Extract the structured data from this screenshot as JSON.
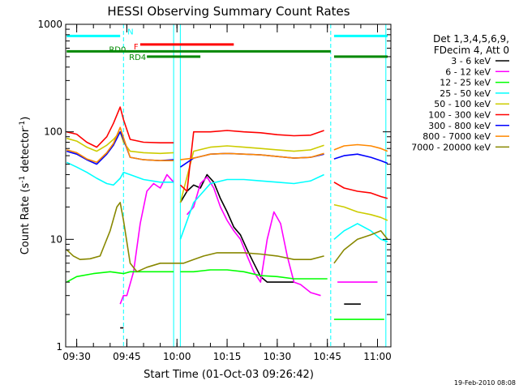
{
  "chart_data": {
    "type": "line",
    "title": "HESSI Observing Summary Count Rates",
    "xlabel": "Start Time (01-Oct-03 09:26:42)",
    "ylabel_main": "Count Rate (s",
    "ylabel_sup1": "-1",
    "ylabel_mid": " detector",
    "ylabel_sup2": "-1",
    "ylabel_end": ")",
    "y_scale": "log",
    "ylim": [
      1,
      1000
    ],
    "xlim": [
      "09:26:42",
      "11:04:00"
    ],
    "x_ticks": [
      "09:30",
      "09:45",
      "10:00",
      "10:15",
      "10:30",
      "10:45",
      "11:00"
    ],
    "y_ticks": [
      "1",
      "10",
      "100",
      "1000"
    ],
    "footer_date": "19-Feb-2010 08:08",
    "legend": {
      "header_lines": [
        "Det 1,3,4,5,6,9,",
        "FDecim 4, Att 0"
      ],
      "entries": [
        {
          "label": "3 - 6 keV",
          "color": "#000000"
        },
        {
          "label": "6 - 12 keV",
          "color": "#ff00ff"
        },
        {
          "label": "12 - 25 keV",
          "color": "#00ff00"
        },
        {
          "label": "25 - 50 keV",
          "color": "#00ffff"
        },
        {
          "label": "50 - 100 keV",
          "color": "#cccc00"
        },
        {
          "label": "100 - 300 keV",
          "color": "#ff0000"
        },
        {
          "label": "300 - 800 keV",
          "color": "#0000ff"
        },
        {
          "label": "800 - 7000 keV",
          "color": "#ff8800"
        },
        {
          "label": "7000 - 20000 keV",
          "color": "#888800"
        }
      ]
    },
    "flags": [
      {
        "label": "N",
        "color": "#00ffff",
        "level": 780,
        "segments": [
          [
            "09:27",
            "09:43"
          ],
          [
            "10:47",
            "11:03"
          ]
        ]
      },
      {
        "label": "F",
        "color": "#ff0000",
        "level": 650,
        "segments": [
          [
            "09:49",
            "10:17"
          ]
        ]
      },
      {
        "label": "RD0",
        "color": "#008800",
        "level": 560,
        "segments": [
          [
            "09:27",
            "10:46"
          ]
        ]
      },
      {
        "label": "",
        "color": "#008800",
        "level": 500,
        "segments": [
          [
            "10:47",
            "11:03"
          ]
        ]
      },
      {
        "label": "RD4",
        "color": "#008800",
        "level": 500,
        "segments": [
          [
            "09:51",
            "10:07"
          ]
        ]
      }
    ],
    "night_boundaries": [
      "09:26:42",
      "09:44:00",
      "10:46:00",
      "11:02:30"
    ],
    "saa_boundaries": [
      "09:59:00",
      "10:01:00"
    ],
    "series": [
      {
        "name": "3 - 6 keV",
        "color": "#000000",
        "x": [
          "09:43",
          "09:44",
          "09:59",
          "10:00",
          "10:01",
          "10:03",
          "10:05",
          "10:07",
          "10:09",
          "10:11",
          "10:13",
          "10:15",
          "10:17",
          "10:19",
          "10:21",
          "10:23",
          "10:25",
          "10:27",
          "10:29",
          "10:31",
          "10:33",
          "10:35",
          "10:46",
          "10:50",
          "10:55"
        ],
        "values": [
          1.5,
          1.5,
          null,
          null,
          22,
          28,
          32,
          30,
          40,
          34,
          24,
          18,
          13,
          11,
          8,
          6,
          4.5,
          4,
          4,
          4,
          4,
          4,
          null,
          2.5,
          2.5
        ]
      },
      {
        "name": "6 - 12 keV",
        "color": "#ff00ff",
        "x": [
          "09:43",
          "09:44",
          "09:45",
          "09:47",
          "09:49",
          "09:51",
          "09:53",
          "09:55",
          "09:57",
          "09:59",
          "10:00",
          "10:01",
          "10:03",
          "10:05",
          "10:07",
          "10:09",
          "10:11",
          "10:13",
          "10:15",
          "10:17",
          "10:19",
          "10:21",
          "10:23",
          "10:25",
          "10:27",
          "10:29",
          "10:31",
          "10:33",
          "10:35",
          "10:37",
          "10:40",
          "10:43",
          "10:46",
          "10:48",
          "10:52",
          "10:56",
          "11:00"
        ],
        "values": [
          2.5,
          3,
          3,
          5,
          14,
          28,
          33,
          30,
          40,
          34,
          null,
          null,
          17,
          20,
          33,
          38,
          30,
          20,
          15,
          12,
          10,
          7,
          5,
          4,
          10,
          18,
          14,
          7,
          4,
          3.8,
          3.2,
          3,
          null,
          4,
          4,
          4,
          4
        ]
      },
      {
        "name": "12 - 25 keV",
        "color": "#00ff00",
        "x": [
          "09:27",
          "09:30",
          "09:35",
          "09:40",
          "09:44",
          "09:46",
          "09:50",
          "09:55",
          "09:59",
          "10:00",
          "10:01",
          "10:05",
          "10:10",
          "10:15",
          "10:20",
          "10:25",
          "10:30",
          "10:35",
          "10:40",
          "10:45",
          "10:46",
          "10:47",
          "10:50",
          "10:55",
          "11:00",
          "11:02"
        ],
        "values": [
          4,
          4.5,
          4.8,
          5,
          4.8,
          5,
          5,
          5,
          5,
          null,
          5,
          5,
          5.2,
          5.2,
          5,
          4.6,
          4.5,
          4.3,
          4.3,
          4.3,
          null,
          1.8,
          1.8,
          1.8,
          1.8,
          1.8
        ]
      },
      {
        "name": "25 - 50 keV",
        "color": "#00ffff",
        "x": [
          "09:27",
          "09:30",
          "09:33",
          "09:36",
          "09:39",
          "09:41",
          "09:43",
          "09:44",
          "09:46",
          "09:50",
          "09:55",
          "09:59",
          "10:00",
          "10:01",
          "10:05",
          "10:10",
          "10:15",
          "10:20",
          "10:25",
          "10:30",
          "10:35",
          "10:40",
          "10:44",
          "10:46",
          "10:47",
          "10:50",
          "10:54",
          "10:58",
          "11:01",
          "11:03"
        ],
        "values": [
          52,
          47,
          42,
          37,
          33,
          32,
          37,
          42,
          40,
          36,
          34,
          34,
          null,
          10,
          22,
          33,
          36,
          36,
          35,
          34,
          33,
          35,
          40,
          null,
          10,
          12,
          14,
          12,
          10,
          9.5
        ]
      },
      {
        "name": "50 - 100 keV",
        "color": "#cccc00",
        "x": [
          "09:27",
          "09:30",
          "09:33",
          "09:36",
          "09:39",
          "09:41",
          "09:43",
          "09:44",
          "09:46",
          "09:50",
          "09:55",
          "09:59",
          "10:00",
          "10:01",
          "10:05",
          "10:10",
          "10:15",
          "10:20",
          "10:25",
          "10:30",
          "10:35",
          "10:40",
          "10:44",
          "10:46",
          "10:47",
          "10:50",
          "10:54",
          "10:58",
          "11:01",
          "11:03"
        ],
        "values": [
          87,
          82,
          72,
          66,
          75,
          85,
          100,
          80,
          66,
          64,
          63,
          64,
          null,
          22,
          66,
          72,
          74,
          72,
          70,
          68,
          66,
          68,
          75,
          null,
          21,
          20,
          18,
          17,
          16,
          15
        ]
      },
      {
        "name": "100 - 300 keV",
        "color": "#ff0000",
        "x": [
          "09:27",
          "09:30",
          "09:33",
          "09:36",
          "09:39",
          "09:41",
          "09:43",
          "09:44",
          "09:46",
          "09:50",
          "09:55",
          "09:59",
          "10:00",
          "10:01",
          "10:03",
          "10:05",
          "10:10",
          "10:15",
          "10:20",
          "10:25",
          "10:30",
          "10:35",
          "10:40",
          "10:44",
          "10:46",
          "10:47",
          "10:50",
          "10:54",
          "10:58",
          "11:01",
          "11:03"
        ],
        "values": [
          100,
          95,
          80,
          72,
          90,
          120,
          170,
          130,
          85,
          80,
          79,
          79,
          null,
          32,
          28,
          100,
          100,
          103,
          100,
          98,
          94,
          92,
          93,
          103,
          null,
          34,
          30,
          28,
          27,
          25,
          24
        ]
      },
      {
        "name": "300 - 800 keV",
        "color": "#0000ff",
        "x": [
          "09:27",
          "09:30",
          "09:33",
          "09:36",
          "09:39",
          "09:41",
          "09:43",
          "09:44",
          "09:46",
          "09:50",
          "09:55",
          "09:59",
          "10:00",
          "10:01",
          "10:05",
          "10:10",
          "10:15",
          "10:20",
          "10:25",
          "10:30",
          "10:35",
          "10:40",
          "10:44",
          "10:46",
          "10:47",
          "10:50",
          "10:54",
          "10:58",
          "11:01",
          "11:03"
        ],
        "values": [
          66,
          62,
          55,
          50,
          62,
          75,
          100,
          85,
          58,
          55,
          54,
          55,
          null,
          47,
          57,
          62,
          63,
          62,
          61,
          59,
          57,
          58,
          62,
          null,
          56,
          60,
          62,
          58,
          54,
          51
        ]
      },
      {
        "name": "800 - 7000 keV",
        "color": "#ff8800",
        "x": [
          "09:27",
          "09:30",
          "09:33",
          "09:36",
          "09:39",
          "09:41",
          "09:43",
          "09:44",
          "09:46",
          "09:50",
          "09:55",
          "09:59",
          "10:00",
          "10:01",
          "10:05",
          "10:10",
          "10:15",
          "10:20",
          "10:25",
          "10:30",
          "10:35",
          "10:40",
          "10:44",
          "10:46",
          "10:47",
          "10:50",
          "10:54",
          "10:58",
          "11:01",
          "11:03"
        ],
        "values": [
          68,
          64,
          56,
          52,
          64,
          78,
          110,
          88,
          58,
          55,
          54,
          54,
          null,
          55,
          57,
          62,
          63,
          62,
          61,
          59,
          57,
          58,
          63,
          null,
          68,
          74,
          76,
          74,
          70,
          66
        ]
      },
      {
        "name": "7000 - 20000 keV",
        "color": "#888800",
        "x": [
          "09:27",
          "09:29",
          "09:31",
          "09:34",
          "09:37",
          "09:40",
          "09:42",
          "09:43",
          "09:44",
          "09:46",
          "09:48",
          "09:51",
          "09:55",
          "09:58",
          "10:00",
          "10:02",
          "10:05",
          "10:08",
          "10:12",
          "10:16",
          "10:20",
          "10:25",
          "10:30",
          "10:35",
          "10:40",
          "10:44",
          "10:46",
          "10:47",
          "10:50",
          "10:54",
          "10:58",
          "11:01",
          "11:03"
        ],
        "values": [
          8,
          7,
          6.5,
          6.6,
          7,
          12,
          20,
          22,
          15,
          6,
          5,
          5.5,
          6,
          6,
          6,
          6,
          6.5,
          7,
          7.5,
          7.5,
          7.5,
          7.3,
          7,
          6.5,
          6.5,
          7,
          null,
          6,
          8,
          10,
          11,
          12,
          10
        ]
      }
    ]
  }
}
